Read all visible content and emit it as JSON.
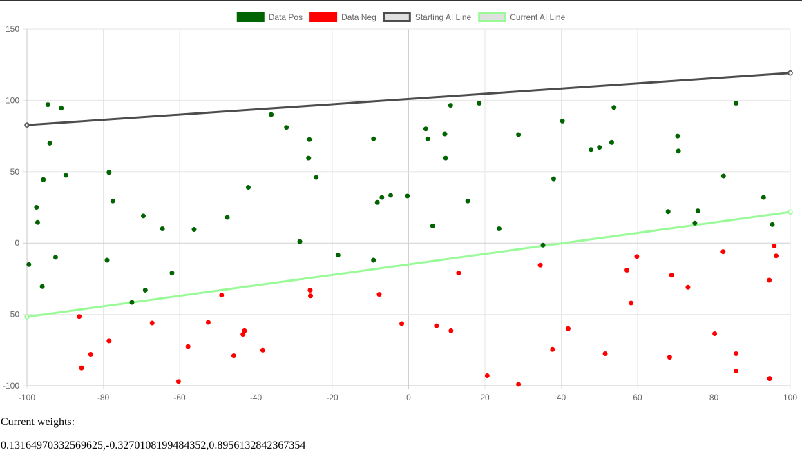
{
  "chart_data": {
    "type": "scatter",
    "xlim": [
      -100,
      100
    ],
    "ylim": [
      -100,
      150
    ],
    "x_ticks": [
      -100,
      -80,
      -60,
      -40,
      -20,
      0,
      20,
      40,
      60,
      80,
      100
    ],
    "y_ticks": [
      -100,
      -50,
      0,
      50,
      100,
      150
    ],
    "grid": true,
    "legend_position": "top",
    "legend": [
      {
        "label": "Data Pos",
        "fill": "#006400",
        "stroke": "#006400"
      },
      {
        "label": "Data Neg",
        "fill": "#ff0000",
        "stroke": "#ff0000"
      },
      {
        "label": "Starting AI Line",
        "fill": "#e0e0e0",
        "stroke": "#4d4d4d"
      },
      {
        "label": "Current AI Line",
        "fill": "#e0e0e0",
        "stroke": "#98fb98"
      }
    ],
    "series": [
      {
        "name": "Data Pos",
        "color": "#006400",
        "points": [
          [
            -99.5,
            -15
          ],
          [
            -97.5,
            25
          ],
          [
            -97.2,
            14.5
          ],
          [
            -96,
            -30.5
          ],
          [
            -95.7,
            44.5
          ],
          [
            -94.5,
            97
          ],
          [
            -94,
            70
          ],
          [
            -92.5,
            -10
          ],
          [
            -91,
            94.5
          ],
          [
            -89.8,
            47.5
          ],
          [
            -79,
            -12
          ],
          [
            -78.5,
            49.5
          ],
          [
            -77.5,
            29.5
          ],
          [
            -72.5,
            -41.5
          ],
          [
            -69.5,
            19
          ],
          [
            -69,
            -33
          ],
          [
            -64.5,
            10
          ],
          [
            -62,
            -21
          ],
          [
            -56.2,
            9.5
          ],
          [
            -47.5,
            18
          ],
          [
            -42,
            39
          ],
          [
            -36,
            90
          ],
          [
            -32,
            81
          ],
          [
            -28.5,
            1
          ],
          [
            -26,
            72.5
          ],
          [
            -26.2,
            59.5
          ],
          [
            -24.2,
            46
          ],
          [
            -18.5,
            -8.5
          ],
          [
            -9.2,
            73
          ],
          [
            -9.2,
            -12
          ],
          [
            -8.2,
            28.5
          ],
          [
            -7,
            32
          ],
          [
            -4.7,
            33.5
          ],
          [
            -0.3,
            33
          ],
          [
            4.5,
            80
          ],
          [
            5,
            73
          ],
          [
            6.3,
            12
          ],
          [
            9.5,
            76.5
          ],
          [
            9.7,
            59.5
          ],
          [
            11,
            96.5
          ],
          [
            15.5,
            29.5
          ],
          [
            18.5,
            98
          ],
          [
            23.7,
            10
          ],
          [
            28.8,
            76
          ],
          [
            35.2,
            -1.5
          ],
          [
            38,
            45
          ],
          [
            40.3,
            85.5
          ],
          [
            47.8,
            65.5
          ],
          [
            50,
            67
          ],
          [
            53.2,
            70.5
          ],
          [
            53.8,
            95
          ],
          [
            68,
            22
          ],
          [
            70.5,
            75
          ],
          [
            70.7,
            64.5
          ],
          [
            75,
            14
          ],
          [
            75.8,
            22.5
          ],
          [
            82.5,
            47
          ],
          [
            85.8,
            98
          ],
          [
            93,
            32
          ],
          [
            95.3,
            13
          ]
        ]
      },
      {
        "name": "Data Neg",
        "color": "#ff0000",
        "points": [
          [
            -86.3,
            -51.5
          ],
          [
            -85.7,
            -87.5
          ],
          [
            -83.3,
            -78
          ],
          [
            -78.5,
            -68.5
          ],
          [
            -67.2,
            -56
          ],
          [
            -60.3,
            -97
          ],
          [
            -57.8,
            -72.5
          ],
          [
            -52.5,
            -55.5
          ],
          [
            -49,
            -36.5
          ],
          [
            -45.8,
            -79
          ],
          [
            -43.4,
            -64
          ],
          [
            -43,
            -61.5
          ],
          [
            -38.2,
            -75
          ],
          [
            -25.8,
            -33
          ],
          [
            -25.7,
            -37
          ],
          [
            -7.7,
            -36
          ],
          [
            -1.8,
            -56.5
          ],
          [
            7.3,
            -58
          ],
          [
            11.1,
            -61.5
          ],
          [
            13.1,
            -21
          ],
          [
            20.6,
            -93
          ],
          [
            28.8,
            -99
          ],
          [
            34.5,
            -15.5
          ],
          [
            37.7,
            -74.5
          ],
          [
            41.8,
            -60
          ],
          [
            51.5,
            -77.5
          ],
          [
            57.2,
            -19
          ],
          [
            58.3,
            -42
          ],
          [
            59.8,
            -9.5
          ],
          [
            68.4,
            -80
          ],
          [
            68.9,
            -22.5
          ],
          [
            73.2,
            -31
          ],
          [
            80.2,
            -63.5
          ],
          [
            82.4,
            -6
          ],
          [
            85.8,
            -77.5
          ],
          [
            85.8,
            -89.5
          ],
          [
            94.5,
            -26
          ],
          [
            94.6,
            -95
          ],
          [
            95.8,
            -2
          ],
          [
            96.3,
            -9
          ]
        ]
      },
      {
        "name": "Starting AI Line",
        "color": "#4d4d4d",
        "points": [
          [
            -100,
            82.7
          ],
          [
            100,
            119.2
          ]
        ]
      },
      {
        "name": "Current AI Line",
        "color": "#98fb98",
        "points": [
          [
            -100,
            -51.7
          ],
          [
            100,
            21.8
          ]
        ]
      }
    ]
  },
  "weights": {
    "label": "Current weights:",
    "value": "0.13164970332569625,-0.3270108199484352,0.8956132842367354"
  }
}
